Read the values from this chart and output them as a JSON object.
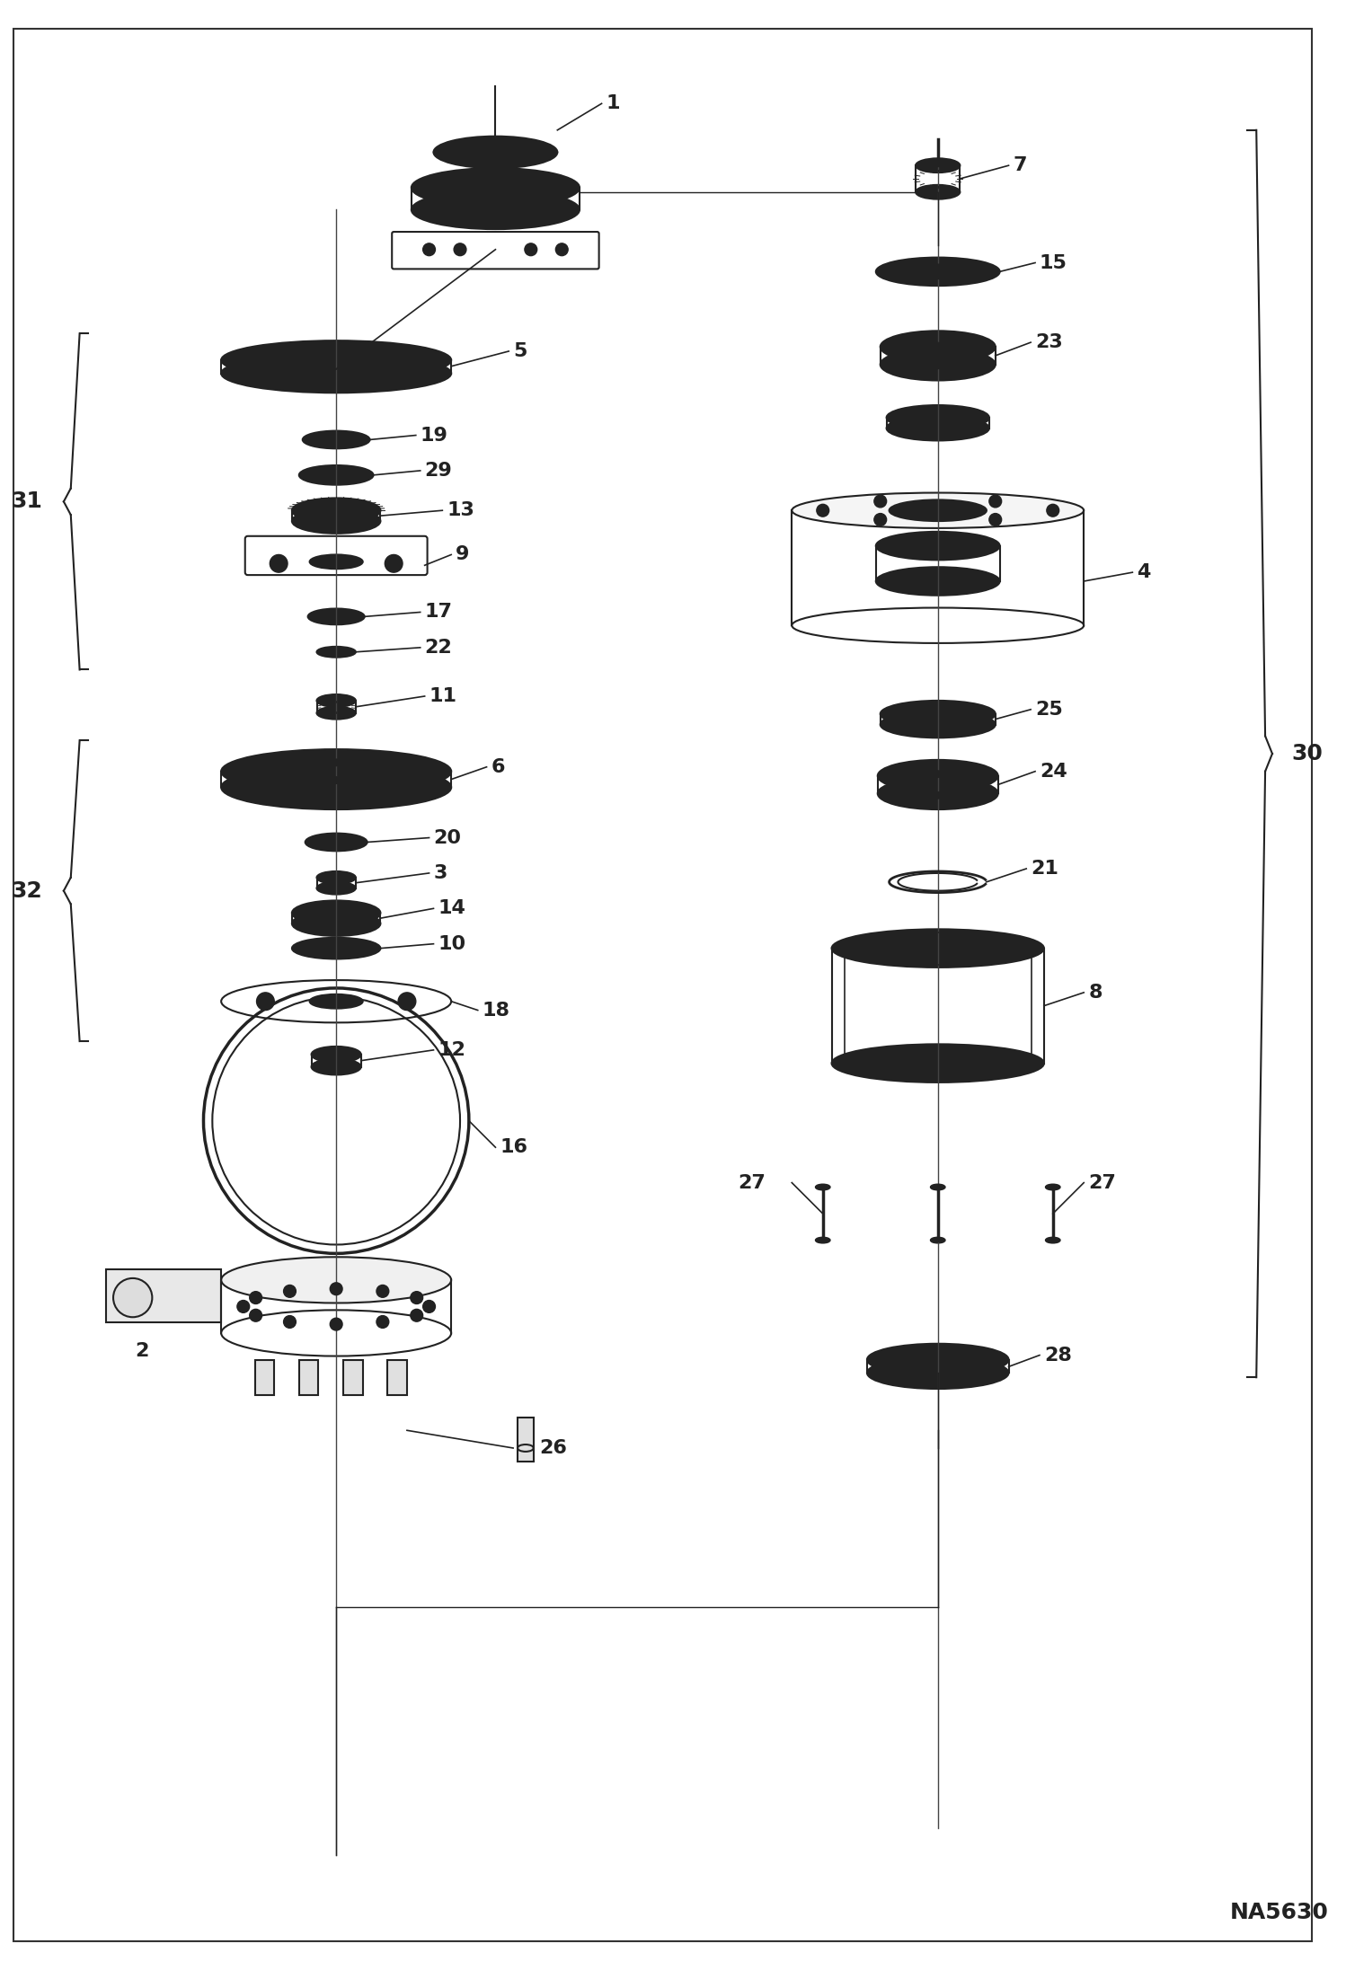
{
  "bg_color": "#ffffff",
  "line_color": "#1a1a1a",
  "label_color": "#1a1a1a",
  "watermark": "NA5630",
  "fig_width": 14.98,
  "fig_height": 21.93,
  "dpi": 100
}
